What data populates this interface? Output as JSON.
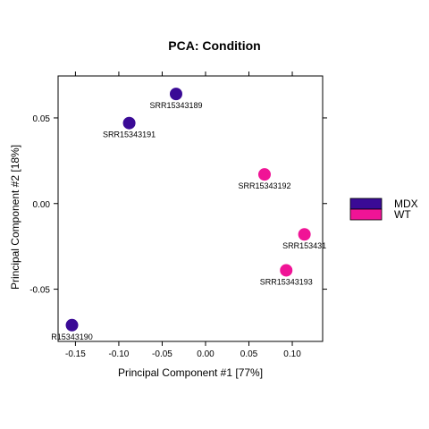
{
  "chart_data": {
    "type": "scatter",
    "title": "PCA: Condition",
    "xlabel": "Principal Component #1 [77%]",
    "ylabel": "Principal Component #2 [18%]",
    "xlim": [
      -0.17,
      0.135
    ],
    "ylim": [
      -0.0805,
      0.0745
    ],
    "x_ticks": [
      -0.15,
      -0.1,
      -0.05,
      0.0,
      0.05,
      0.1
    ],
    "x_tick_labels": [
      "-0.15",
      "-0.10",
      "-0.05",
      "0.00",
      "0.05",
      "0.10"
    ],
    "y_ticks": [
      0.05,
      0.0,
      -0.05
    ],
    "y_tick_labels": [
      "0.05",
      "0.00",
      "-0.05"
    ],
    "grid": false,
    "legend_position": "right",
    "series": [
      {
        "name": "MDX",
        "color": "#3a0a96",
        "points": [
          {
            "x": -0.034,
            "y": 0.064,
            "label": "SRR15343189"
          },
          {
            "x": -0.088,
            "y": 0.047,
            "label": "SRR15343191"
          },
          {
            "x": -0.154,
            "y": -0.071,
            "label": "R15343190"
          }
        ]
      },
      {
        "name": "WT",
        "color": "#f01496",
        "points": [
          {
            "x": 0.068,
            "y": 0.017,
            "label": "SRR15343192"
          },
          {
            "x": 0.114,
            "y": -0.018,
            "label": "SRR153431"
          },
          {
            "x": 0.093,
            "y": -0.039,
            "label": "SRR15343193"
          }
        ]
      }
    ]
  }
}
